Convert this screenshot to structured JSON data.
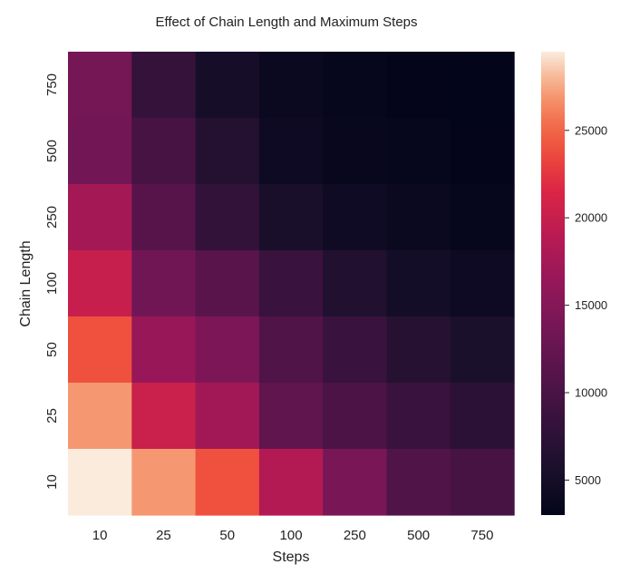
{
  "chart_data": {
    "type": "heatmap",
    "title": "Effect of Chain Length and Maximum Steps",
    "xlabel": "Steps",
    "ylabel": "Chain Length",
    "x_categories": [
      "10",
      "25",
      "50",
      "100",
      "250",
      "500",
      "750"
    ],
    "y_categories": [
      "750",
      "500",
      "250",
      "100",
      "50",
      "25",
      "10"
    ],
    "values": [
      [
        13800,
        8200,
        5200,
        3900,
        3300,
        3100,
        3000
      ],
      [
        13500,
        9800,
        6600,
        4300,
        3600,
        3300,
        3100
      ],
      [
        17500,
        11200,
        8000,
        5500,
        4500,
        3900,
        3300
      ],
      [
        20000,
        13400,
        11300,
        8600,
        6300,
        5000,
        4300
      ],
      [
        24000,
        16500,
        14400,
        10600,
        8600,
        6900,
        5600
      ],
      [
        27000,
        20300,
        17300,
        12000,
        10200,
        8600,
        7400
      ],
      [
        29500,
        27000,
        24000,
        18500,
        14000,
        10600,
        9800
      ]
    ],
    "colorbar": {
      "min": 3000,
      "max": 29500,
      "ticks": [
        5000,
        10000,
        15000,
        20000,
        25000
      ],
      "tick_labels": [
        "5000",
        "10000",
        "15000",
        "20000",
        "25000"
      ]
    },
    "colormap": "rocket"
  }
}
